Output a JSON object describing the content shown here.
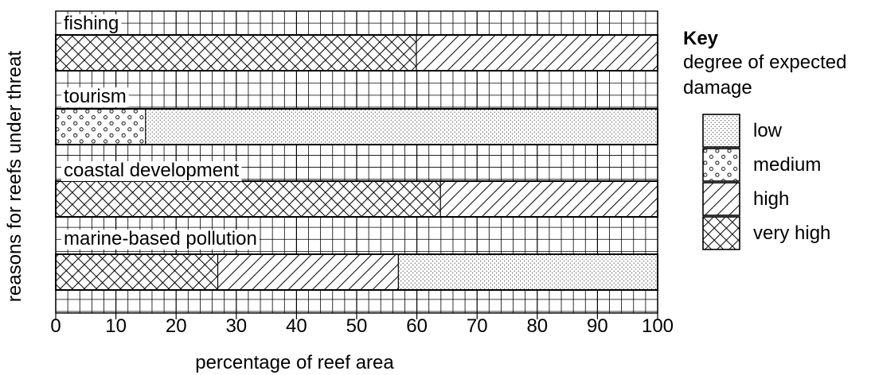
{
  "chart_data": {
    "type": "bar",
    "orientation": "horizontal",
    "stacked": true,
    "title": "",
    "xlabel": "percentage of reef area",
    "ylabel": "reasons for reefs under threat",
    "xlim": [
      0,
      100
    ],
    "x_ticks": [
      "0",
      "10",
      "20",
      "30",
      "40",
      "50",
      "60",
      "70",
      "80",
      "90",
      "100"
    ],
    "grid": true,
    "legend_position": "right",
    "categories": [
      "fishing",
      "tourism",
      "coastal development",
      "marine-based pollution"
    ],
    "series": [
      {
        "name": "very high",
        "pattern": "crosshatch",
        "values": [
          60,
          0,
          64,
          27
        ]
      },
      {
        "name": "high",
        "pattern": "diagonal",
        "values": [
          40,
          0,
          36,
          30
        ]
      },
      {
        "name": "medium",
        "pattern": "circles",
        "values": [
          0,
          15,
          0,
          0
        ]
      },
      {
        "name": "low",
        "pattern": "dots",
        "values": [
          0,
          85,
          0,
          43
        ]
      }
    ],
    "bar_order": [
      [
        "very high",
        "high"
      ],
      [
        "medium",
        "low"
      ],
      [
        "very high",
        "high"
      ],
      [
        "very high",
        "high",
        "low"
      ]
    ]
  },
  "key": {
    "title": "Key",
    "subtitle": "degree of expected damage",
    "items": [
      {
        "label": "low",
        "pattern": "dots"
      },
      {
        "label": "medium",
        "pattern": "circles"
      },
      {
        "label": "high",
        "pattern": "diagonal"
      },
      {
        "label": "very high",
        "pattern": "crosshatch"
      }
    ]
  }
}
